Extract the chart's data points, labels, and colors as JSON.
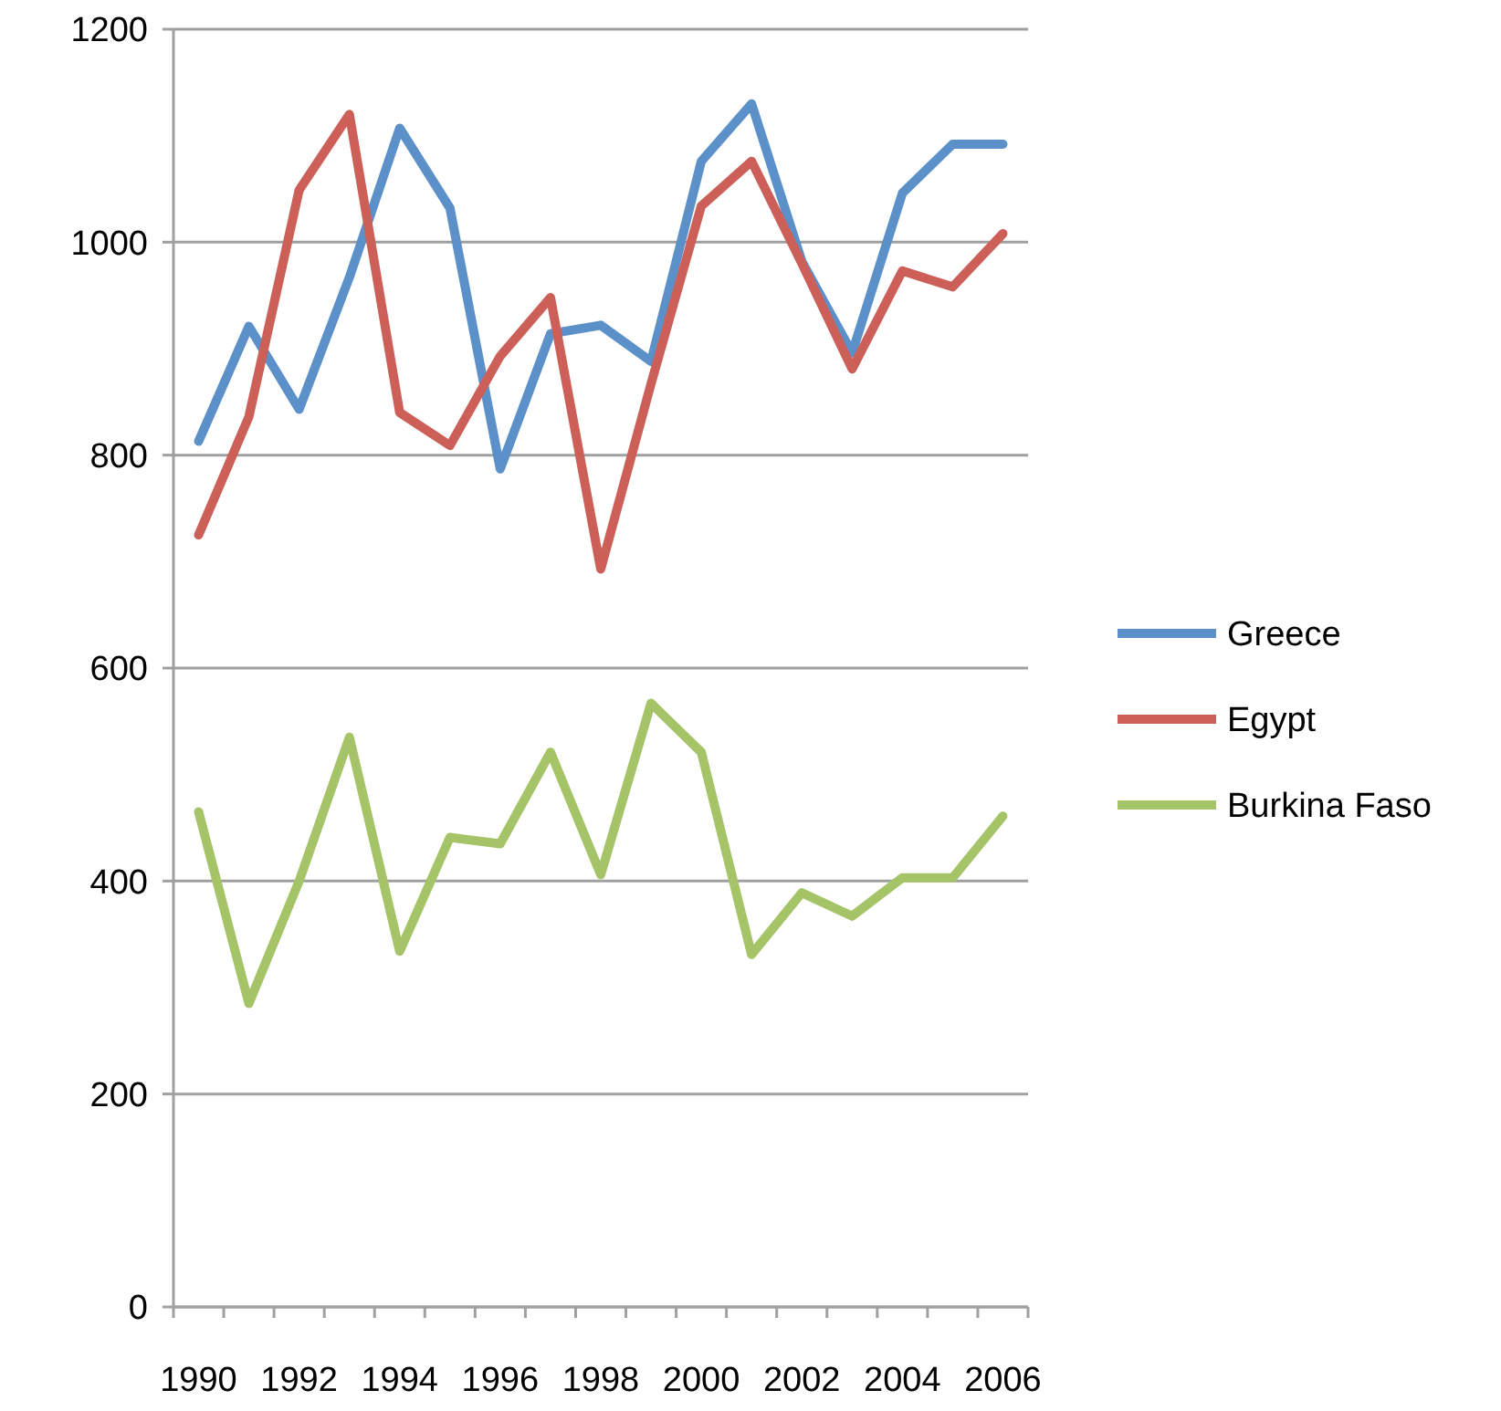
{
  "chart_data": {
    "type": "line",
    "categories": [
      "1990",
      null,
      "1992",
      null,
      "1994",
      null,
      "1996",
      null,
      "1998",
      null,
      "2000",
      null,
      "2002",
      null,
      "2004",
      null,
      "2006"
    ],
    "series": [
      {
        "name": "Greece",
        "color": "#5b90c9",
        "values": [
          813,
          921,
          843,
          967,
          1107,
          1032,
          787,
          914,
          922,
          888,
          1076,
          1130,
          982,
          896,
          1046,
          1092,
          1092
        ]
      },
      {
        "name": "Egypt",
        "color": "#cc6058",
        "values": [
          725,
          836,
          1049,
          1120,
          840,
          809,
          893,
          948,
          693,
          867,
          1034,
          1076,
          980,
          881,
          973,
          958,
          1008
        ]
      },
      {
        "name": "Burkina Faso",
        "color": "#a5c468",
        "values": [
          465,
          285,
          400,
          535,
          334,
          441,
          435,
          521,
          406,
          567,
          521,
          331,
          389,
          367,
          403,
          403,
          461
        ]
      }
    ],
    "ylim": [
      0,
      1200
    ],
    "yticks": [
      0,
      200,
      400,
      600,
      800,
      1000,
      1200
    ],
    "grid": "y",
    "legend": "right",
    "marker": "none",
    "line_style": "solid"
  }
}
